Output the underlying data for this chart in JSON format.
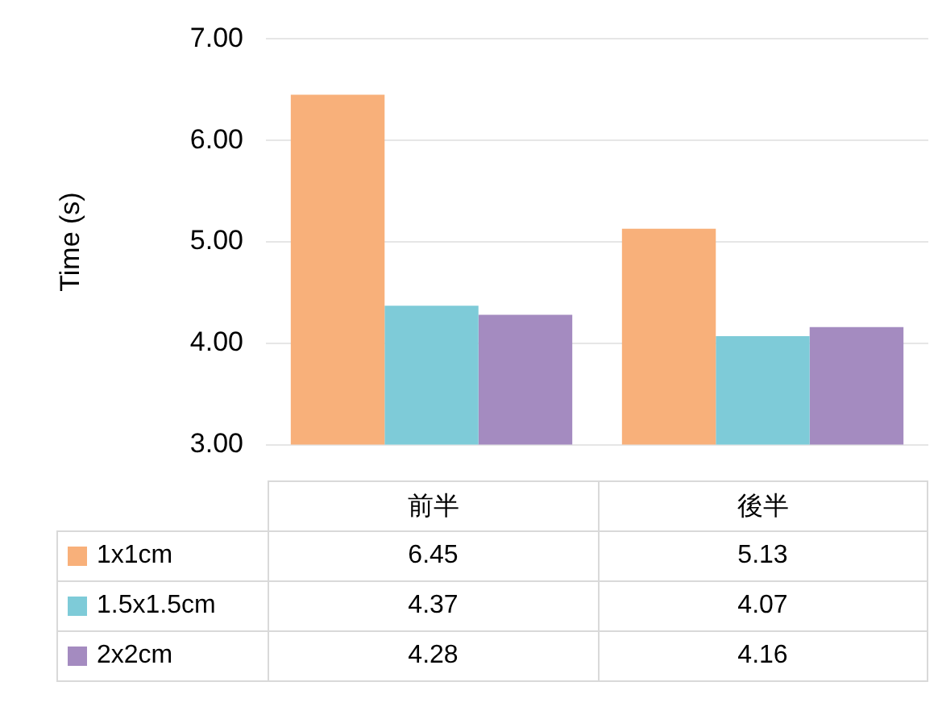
{
  "chart_data": {
    "type": "bar",
    "ylabel": "Time (s)",
    "categories": [
      "前半",
      "後半"
    ],
    "series": [
      {
        "name": "1x1cm",
        "color": "#f8b07a",
        "values": [
          6.45,
          5.13
        ]
      },
      {
        "name": "1.5x1.5cm",
        "color": "#7ecbd8",
        "values": [
          4.37,
          4.07
        ]
      },
      {
        "name": "2x2cm",
        "color": "#a48bc0",
        "values": [
          4.28,
          4.16
        ]
      }
    ],
    "ylim": [
      3,
      7
    ],
    "yticks": [
      {
        "value": 3,
        "label": "3.00"
      },
      {
        "value": 4,
        "label": "4.00"
      },
      {
        "value": 5,
        "label": "5.00"
      },
      {
        "value": 6,
        "label": "6.00"
      },
      {
        "value": 7,
        "label": "7.00"
      }
    ],
    "grid": "y",
    "legend": "bottom",
    "data_labels": true
  }
}
